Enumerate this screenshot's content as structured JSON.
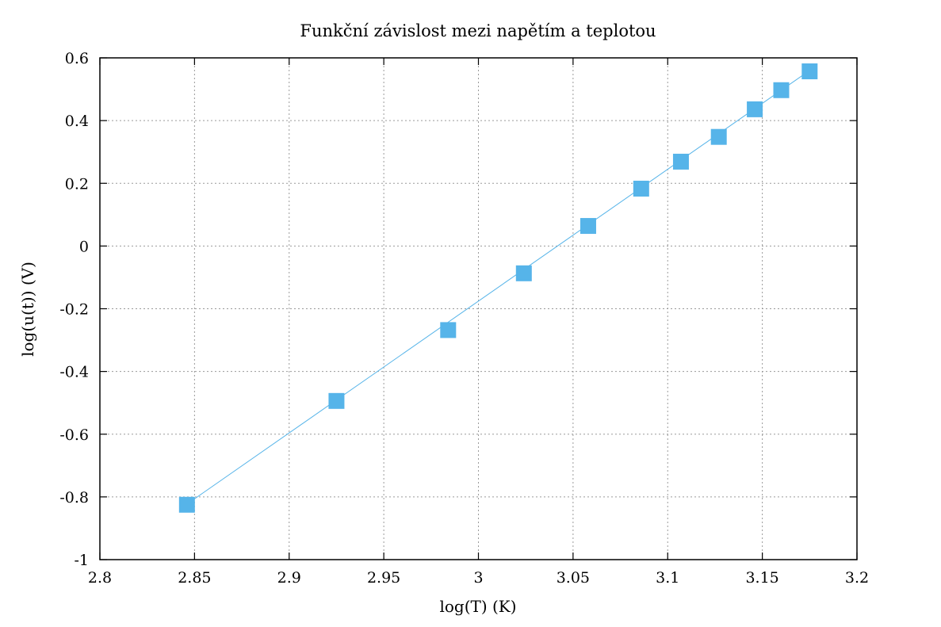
{
  "chart_data": {
    "type": "line",
    "title": "Funkční závislost mezi napětím a teplotou",
    "xlabel": "log(T) (K)",
    "ylabel": "log(u(t)) (V)",
    "xlim": [
      2.8,
      3.2
    ],
    "ylim": [
      -1,
      0.6
    ],
    "xticks": [
      "2.8",
      "2.85",
      "2.9",
      "2.95",
      "3",
      "3.05",
      "3.1",
      "3.15",
      "3.2"
    ],
    "yticks": [
      "-1",
      "-0.8",
      "-0.6",
      "-0.4",
      "-0.2",
      "0",
      "0.2",
      "0.4",
      "0.6"
    ],
    "grid": true,
    "marker": "square",
    "series": [
      {
        "color": "#56b4e9",
        "x": [
          2.846,
          2.925,
          2.984,
          3.024,
          3.058,
          3.086,
          3.107,
          3.127,
          3.146,
          3.16,
          3.175
        ],
        "y": [
          -0.825,
          -0.494,
          -0.268,
          -0.087,
          0.064,
          0.183,
          0.269,
          0.348,
          0.436,
          0.497,
          0.557
        ]
      }
    ],
    "fit_line": {
      "color": "#56b4e9",
      "x": [
        2.846,
        3.175
      ],
      "y": [
        -0.823,
        0.56
      ]
    }
  }
}
